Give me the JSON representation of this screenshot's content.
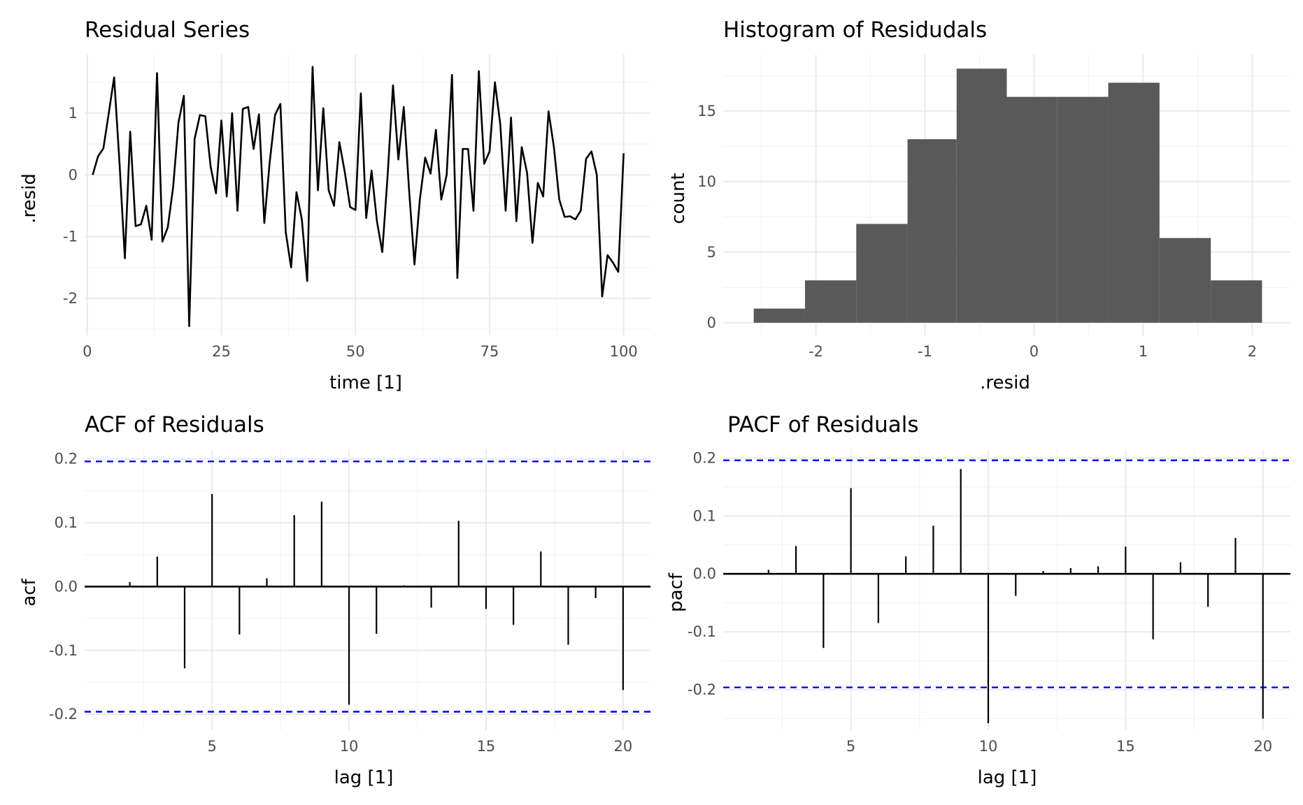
{
  "chart_data": [
    {
      "type": "line",
      "title": "Residual Series",
      "xlabel": "time [1]",
      "ylabel": ".resid",
      "xlim": [
        -0.5,
        105
      ],
      "ylim": [
        -2.6,
        1.95
      ],
      "xticks": [
        0,
        25,
        50,
        75,
        100
      ],
      "xticklabels": [
        "0",
        "25",
        "50",
        "75",
        "100"
      ],
      "yticks": [
        -2,
        -1,
        0,
        1
      ],
      "yticklabels": [
        "-2",
        "-1",
        "0",
        "1"
      ],
      "grid": true,
      "x": [
        1,
        2,
        3,
        4,
        5,
        6,
        7,
        8,
        9,
        10,
        11,
        12,
        13,
        14,
        15,
        16,
        17,
        18,
        19,
        20,
        21,
        22,
        23,
        24,
        25,
        26,
        27,
        28,
        29,
        30,
        31,
        32,
        33,
        34,
        35,
        36,
        37,
        38,
        39,
        40,
        41,
        42,
        43,
        44,
        45,
        46,
        47,
        48,
        49,
        50,
        51,
        52,
        53,
        54,
        55,
        56,
        57,
        58,
        59,
        60,
        61,
        62,
        63,
        64,
        65,
        66,
        67,
        68,
        69,
        70,
        71,
        72,
        73,
        74,
        75,
        76,
        77,
        78,
        79,
        80,
        81,
        82,
        83,
        84,
        85,
        86,
        87,
        88,
        89,
        90,
        91,
        92,
        93,
        94,
        95,
        96,
        97,
        98,
        99,
        100
      ],
      "y": [
        0.0,
        0.3,
        0.43,
        1.0,
        1.58,
        0.2,
        -1.35,
        0.7,
        -0.83,
        -0.8,
        -0.5,
        -1.05,
        1.65,
        -1.08,
        -0.85,
        -0.2,
        0.85,
        1.28,
        -2.45,
        0.58,
        0.97,
        0.95,
        0.13,
        -0.3,
        0.88,
        -0.35,
        1.0,
        -0.58,
        1.07,
        1.1,
        0.42,
        0.98,
        -0.78,
        0.2,
        0.97,
        1.15,
        -0.93,
        -1.5,
        -0.28,
        -0.72,
        -1.72,
        1.75,
        -0.25,
        1.08,
        -0.25,
        -0.5,
        0.53,
        0.05,
        -0.52,
        -0.57,
        1.32,
        -0.7,
        0.07,
        -0.75,
        -1.25,
        0.0,
        1.45,
        0.25,
        1.1,
        -0.25,
        -1.45,
        -0.4,
        0.28,
        0.02,
        0.73,
        -0.4,
        0.0,
        1.62,
        -1.67,
        0.42,
        0.42,
        -0.58,
        1.68,
        0.18,
        0.38,
        1.5,
        0.82,
        -0.58,
        0.93,
        -0.75,
        0.45,
        0.03,
        -1.1,
        -0.13,
        -0.35,
        1.03,
        0.45,
        -0.4,
        -0.68,
        -0.67,
        -0.72,
        -0.58,
        0.26,
        0.38,
        0.0,
        -1.97,
        -1.3,
        -1.42,
        -1.57,
        0.35
      ]
    },
    {
      "type": "bar",
      "title": "Histogram of Residudals",
      "xlabel": ".resid",
      "ylabel": "count",
      "xlim": [
        -2.85,
        2.35
      ],
      "ylim": [
        -0.9,
        19.0
      ],
      "xticks": [
        -2,
        -1,
        0,
        1,
        2
      ],
      "xticklabels": [
        "-2",
        "-1",
        "0",
        "1",
        "2"
      ],
      "yticks": [
        0,
        5,
        10,
        15
      ],
      "yticklabels": [
        "0",
        "5",
        "10",
        "15"
      ],
      "grid": true,
      "bin_edges": [
        -2.57,
        -2.1,
        -1.63,
        -1.16,
        -0.71,
        -0.25,
        0.21,
        0.68,
        1.15,
        1.62,
        2.09
      ],
      "counts": [
        1,
        3,
        7,
        13,
        18,
        16,
        16,
        17,
        6,
        3
      ],
      "color": "#595959"
    },
    {
      "type": "bar",
      "title": "ACF of Residuals",
      "xlabel": "lag [1]",
      "ylabel": "acf",
      "xlim": [
        0.35,
        21.0
      ],
      "ylim": [
        -0.225,
        0.215
      ],
      "xticks": [
        5,
        10,
        15,
        20
      ],
      "xticklabels": [
        "5",
        "10",
        "15",
        "20"
      ],
      "yticks": [
        -0.2,
        -0.1,
        0.0,
        0.1,
        0.2
      ],
      "yticklabels": [
        "-0.2",
        "-0.1",
        "0.0",
        "0.1",
        "0.2"
      ],
      "grid": true,
      "lags": [
        1,
        2,
        3,
        4,
        5,
        6,
        7,
        8,
        9,
        10,
        11,
        12,
        13,
        14,
        15,
        16,
        17,
        18,
        19,
        20
      ],
      "values": [
        0.0,
        0.007,
        0.047,
        -0.128,
        0.145,
        -0.075,
        0.013,
        0.112,
        0.133,
        -0.185,
        -0.074,
        0.002,
        -0.033,
        0.103,
        -0.035,
        -0.06,
        0.055,
        -0.091,
        -0.018,
        -0.162
      ],
      "confidence_limit": 0.196,
      "confidence_color": "#0000ff"
    },
    {
      "type": "bar",
      "title": "PACF of Residuals",
      "xlabel": "lag [1]",
      "ylabel": "pacf",
      "xlim": [
        0.35,
        21.0
      ],
      "ylim": [
        -0.27,
        0.215
      ],
      "xticks": [
        5,
        10,
        15,
        20
      ],
      "xticklabels": [
        "5",
        "10",
        "15",
        "20"
      ],
      "yticks": [
        -0.2,
        -0.1,
        0.0,
        0.1,
        0.2
      ],
      "yticklabels": [
        "-0.2",
        "-0.1",
        "0.0",
        "0.1",
        "0.2"
      ],
      "grid": true,
      "lags": [
        1,
        2,
        3,
        4,
        5,
        6,
        7,
        8,
        9,
        10,
        11,
        12,
        13,
        14,
        15,
        16,
        17,
        18,
        19,
        20
      ],
      "values": [
        0.0,
        0.007,
        0.048,
        -0.128,
        0.148,
        -0.085,
        0.03,
        0.083,
        0.181,
        -0.258,
        -0.038,
        0.005,
        0.01,
        0.013,
        0.047,
        -0.113,
        0.02,
        -0.057,
        0.062,
        -0.25
      ],
      "confidence_limit": 0.196,
      "confidence_color": "#0000ff"
    }
  ]
}
